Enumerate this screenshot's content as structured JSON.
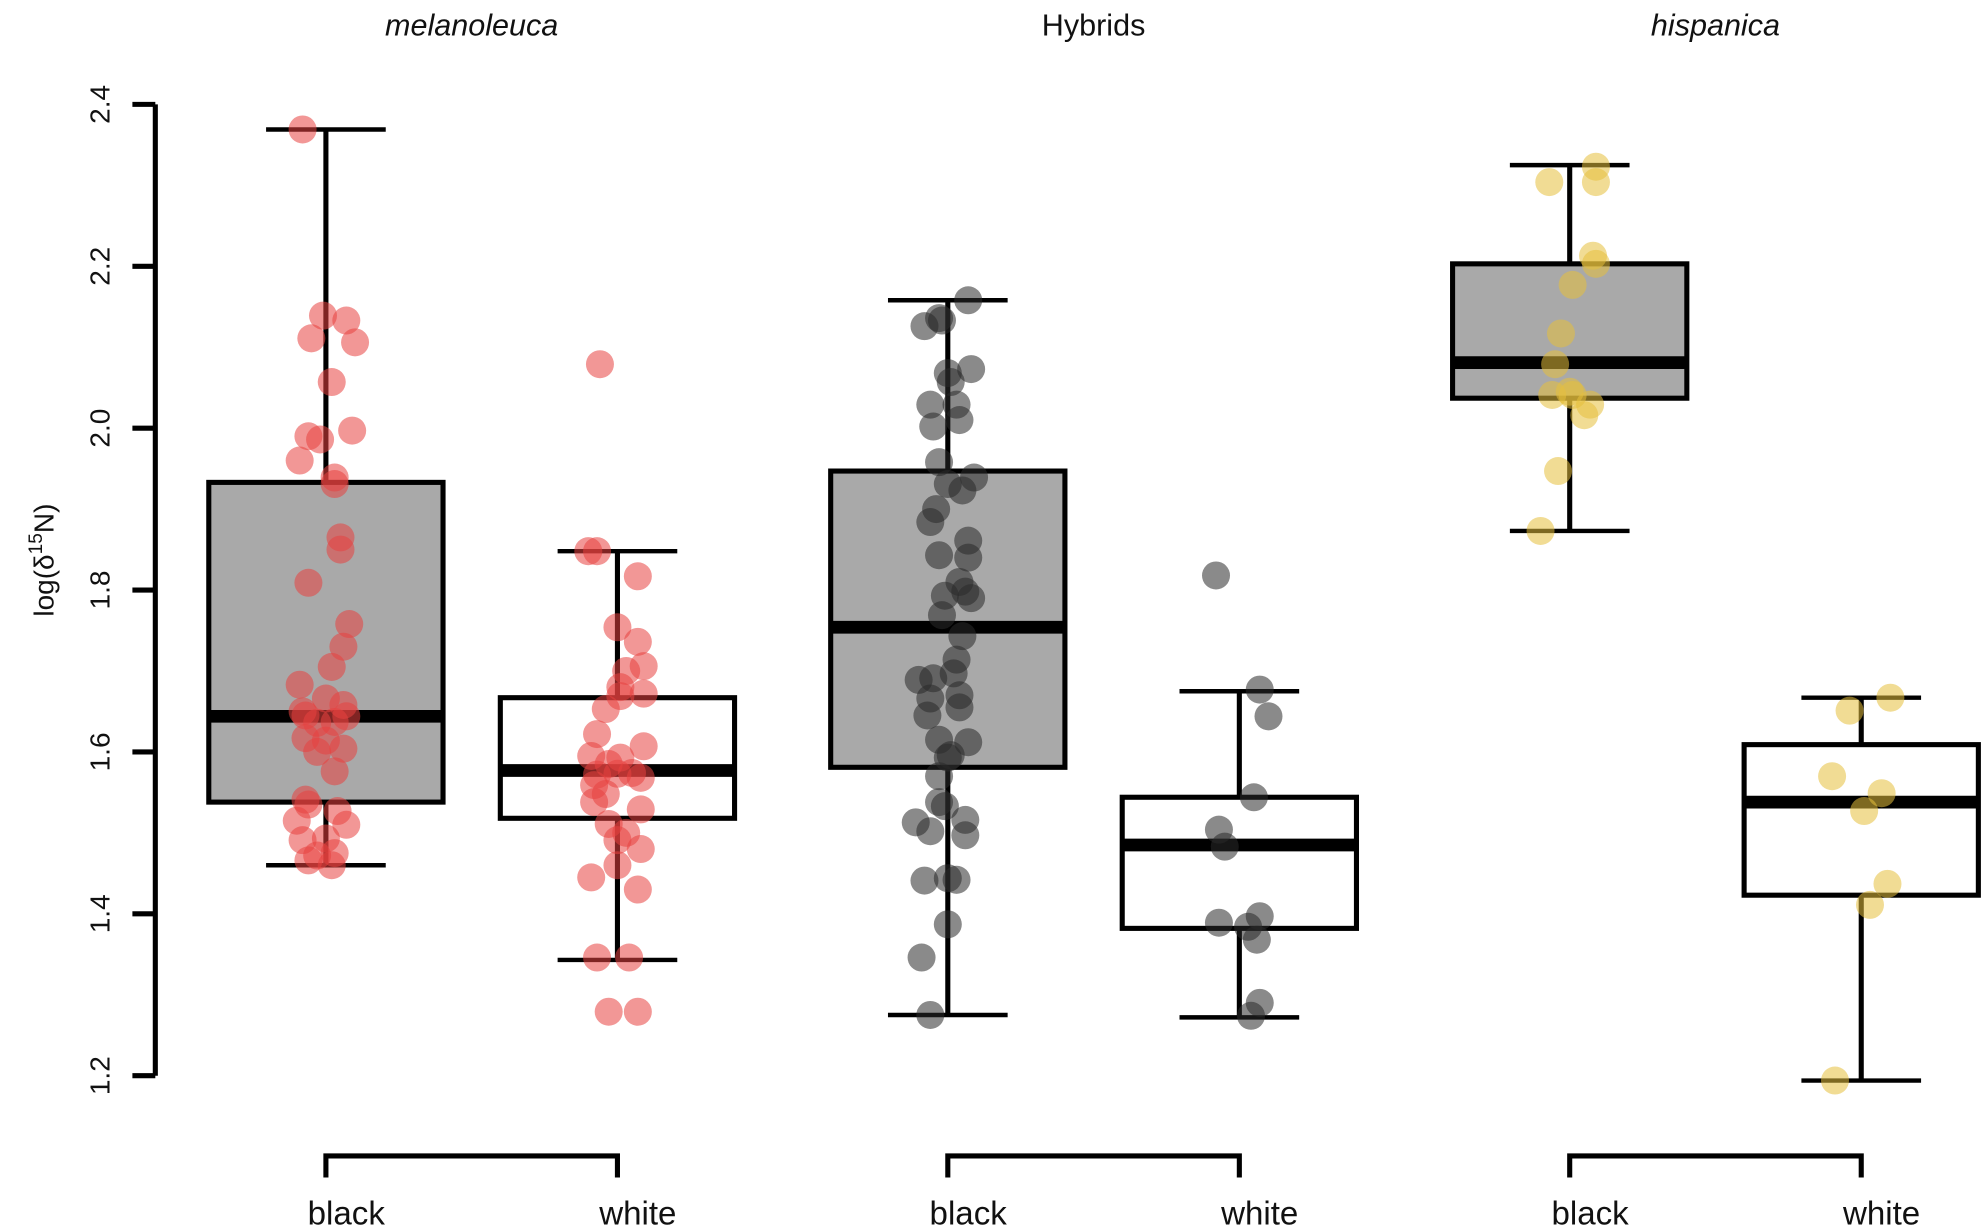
{
  "chart_data": {
    "type": "boxplot",
    "title": "",
    "ylabel": "log(δ15N)",
    "ylabel_parts": {
      "prefix": "log(δ",
      "sup": "15",
      "suffix": "N)"
    },
    "ylim": [
      1.2,
      2.4
    ],
    "yticks": [
      "1.2",
      "1.4",
      "1.6",
      "1.8",
      "2.0",
      "2.2",
      "2.4"
    ],
    "grid": false,
    "colors": {
      "melanoleuca": "#e8413f",
      "Hybrids": "#2a2a2a",
      "hispanica": "#e6bf3c",
      "box_black": "#a9a9a9",
      "box_white": "#ffffff"
    },
    "groups": [
      {
        "name": "melanoleuca",
        "italic": true,
        "color_key": "melanoleuca",
        "categories": [
          {
            "label": "black",
            "fill": "box_black",
            "stats": {
              "low": 1.46,
              "q1": 1.538,
              "median": 1.644,
              "q3": 1.933,
              "high": 2.369
            },
            "points": [
              [
                2.369,
                -0.08
              ],
              [
                2.139,
                -0.01
              ],
              [
                2.133,
                0.07
              ],
              [
                2.111,
                -0.05
              ],
              [
                2.106,
                0.1
              ],
              [
                2.057,
                0.02
              ],
              [
                1.997,
                0.09
              ],
              [
                1.99,
                -0.06
              ],
              [
                1.986,
                -0.02
              ],
              [
                1.96,
                -0.09
              ],
              [
                1.939,
                0.03
              ],
              [
                1.931,
                0.03
              ],
              [
                1.865,
                0.05
              ],
              [
                1.85,
                0.05
              ],
              [
                1.809,
                -0.06
              ],
              [
                1.758,
                0.08
              ],
              [
                1.73,
                0.06
              ],
              [
                1.705,
                0.02
              ],
              [
                1.683,
                -0.09
              ],
              [
                1.666,
                0
              ],
              [
                1.658,
                0.06
              ],
              [
                1.65,
                -0.08
              ],
              [
                1.645,
                -0.07
              ],
              [
                1.636,
                -0.03
              ],
              [
                1.637,
                0.03
              ],
              [
                1.644,
                0.07
              ],
              [
                1.617,
                -0.07
              ],
              [
                1.614,
                0
              ],
              [
                1.6,
                -0.03
              ],
              [
                1.604,
                0.06
              ],
              [
                1.576,
                0.03
              ],
              [
                1.541,
                -0.07
              ],
              [
                1.535,
                -0.06
              ],
              [
                1.527,
                0.04
              ],
              [
                1.51,
                0.07
              ],
              [
                1.515,
                -0.1
              ],
              [
                1.491,
                -0.08
              ],
              [
                1.493,
                0
              ],
              [
                1.475,
                0.03
              ],
              [
                1.472,
                -0.03
              ],
              [
                1.46,
                0.02
              ],
              [
                1.466,
                -0.06
              ]
            ]
          },
          {
            "label": "white",
            "fill": "box_white",
            "stats": {
              "low": 1.343,
              "q1": 1.518,
              "median": 1.577,
              "q3": 1.667,
              "high": 1.848
            },
            "points": [
              [
                2.079,
                -0.06
              ],
              [
                1.848,
                -0.1
              ],
              [
                1.848,
                -0.07
              ],
              [
                1.817,
                0.07
              ],
              [
                1.754,
                0
              ],
              [
                1.736,
                0.07
              ],
              [
                1.706,
                0.09
              ],
              [
                1.7,
                0.03
              ],
              [
                1.68,
                0.01
              ],
              [
                1.672,
                0.09
              ],
              [
                1.669,
                0.01
              ],
              [
                1.653,
                -0.04
              ],
              [
                1.622,
                -0.07
              ],
              [
                1.607,
                0.09
              ],
              [
                1.595,
                -0.09
              ],
              [
                1.593,
                0.01
              ],
              [
                1.585,
                -0.03
              ],
              [
                1.572,
                -0.07
              ],
              [
                1.574,
                0.05
              ],
              [
                1.573,
                0
              ],
              [
                1.568,
                0.08
              ],
              [
                1.559,
                -0.08
              ],
              [
                1.548,
                -0.04
              ],
              [
                1.538,
                -0.08
              ],
              [
                1.529,
                0.08
              ],
              [
                1.511,
                -0.03
              ],
              [
                1.5,
                0.03
              ],
              [
                1.491,
                0
              ],
              [
                1.48,
                0.08
              ],
              [
                1.46,
                0
              ],
              [
                1.445,
                -0.09
              ],
              [
                1.43,
                0.07
              ],
              [
                1.346,
                -0.07
              ],
              [
                1.346,
                0.04
              ],
              [
                1.279,
                -0.03
              ],
              [
                1.279,
                0.07
              ]
            ]
          }
        ]
      },
      {
        "name": "Hybrids",
        "italic": false,
        "color_key": "Hybrids",
        "categories": [
          {
            "label": "black",
            "fill": "box_black",
            "stats": {
              "low": 1.275,
              "q1": 1.581,
              "median": 1.754,
              "q3": 1.947,
              "high": 2.158
            },
            "points": [
              [
                2.158,
                0.07
              ],
              [
                2.136,
                -0.03
              ],
              [
                2.126,
                -0.08
              ],
              [
                2.133,
                -0.02
              ],
              [
                2.073,
                0.08
              ],
              [
                2.068,
                0
              ],
              [
                2.057,
                0.01
              ],
              [
                2.029,
                0.03
              ],
              [
                2.029,
                -0.06
              ],
              [
                2.002,
                -0.05
              ],
              [
                2.01,
                0.04
              ],
              [
                1.958,
                -0.03
              ],
              [
                1.939,
                0.09
              ],
              [
                1.931,
                0
              ],
              [
                1.923,
                0.05
              ],
              [
                1.9,
                -0.04
              ],
              [
                1.884,
                -0.06
              ],
              [
                1.861,
                0.07
              ],
              [
                1.843,
                -0.03
              ],
              [
                1.84,
                0.07
              ],
              [
                1.81,
                0.04
              ],
              [
                1.793,
                -0.01
              ],
              [
                1.79,
                0.08
              ],
              [
                1.798,
                0.06
              ],
              [
                1.769,
                -0.02
              ],
              [
                1.743,
                0.05
              ],
              [
                1.714,
                0.03
              ],
              [
                1.697,
                0.02
              ],
              [
                1.691,
                -0.05
              ],
              [
                1.689,
                -0.1
              ],
              [
                1.666,
                -0.06
              ],
              [
                1.67,
                0.04
              ],
              [
                1.645,
                -0.07
              ],
              [
                1.655,
                0.04
              ],
              [
                1.615,
                -0.03
              ],
              [
                1.612,
                0.07
              ],
              [
                1.593,
                0
              ],
              [
                1.596,
                0.01
              ],
              [
                1.57,
                -0.03
              ],
              [
                1.538,
                -0.03
              ],
              [
                1.533,
                -0.01
              ],
              [
                1.516,
                0.06
              ],
              [
                1.513,
                -0.11
              ],
              [
                1.502,
                -0.06
              ],
              [
                1.497,
                0.06
              ],
              [
                1.441,
                -0.08
              ],
              [
                1.444,
                0
              ],
              [
                1.442,
                0.03
              ],
              [
                1.387,
                0
              ],
              [
                1.346,
                -0.09
              ],
              [
                1.275,
                -0.06
              ]
            ]
          },
          {
            "label": "white",
            "fill": "box_white",
            "stats": {
              "low": 1.272,
              "q1": 1.382,
              "median": 1.485,
              "q3": 1.544,
              "high": 1.675
            },
            "points": [
              [
                1.818,
                -0.08
              ],
              [
                1.677,
                0.07
              ],
              [
                1.644,
                0.1
              ],
              [
                1.544,
                0.05
              ],
              [
                1.504,
                -0.07
              ],
              [
                1.483,
                -0.05
              ],
              [
                1.389,
                -0.07
              ],
              [
                1.397,
                0.07
              ],
              [
                1.384,
                0.03
              ],
              [
                1.368,
                0.06
              ],
              [
                1.29,
                0.07
              ],
              [
                1.274,
                0.04
              ]
            ]
          }
        ]
      },
      {
        "name": "hispanica",
        "italic": true,
        "color_key": "hispanica",
        "categories": [
          {
            "label": "black",
            "fill": "box_black",
            "stats": {
              "low": 1.873,
              "q1": 2.037,
              "median": 2.081,
              "q3": 2.203,
              "high": 2.325
            },
            "points": [
              [
                2.304,
                -0.07
              ],
              [
                2.323,
                0.09
              ],
              [
                2.304,
                0.09
              ],
              [
                2.213,
                0.08
              ],
              [
                2.203,
                0.09
              ],
              [
                2.177,
                0.01
              ],
              [
                2.117,
                -0.03
              ],
              [
                2.079,
                -0.05
              ],
              [
                2.041,
                -0.06
              ],
              [
                2.045,
                0
              ],
              [
                2.041,
                0.01
              ],
              [
                2.029,
                0.07
              ],
              [
                2.016,
                0.05
              ],
              [
                1.947,
                -0.04
              ],
              [
                1.873,
                -0.1
              ]
            ]
          },
          {
            "label": "white",
            "fill": "box_white",
            "stats": {
              "low": 1.194,
              "q1": 1.423,
              "median": 1.538,
              "q3": 1.609,
              "high": 1.667
            },
            "points": [
              [
                1.651,
                -0.04
              ],
              [
                1.667,
                0.1
              ],
              [
                1.57,
                -0.1
              ],
              [
                1.549,
                0.07
              ],
              [
                1.527,
                0.01
              ],
              [
                1.437,
                0.09
              ],
              [
                1.411,
                0.03
              ],
              [
                1.194,
                -0.09
              ]
            ]
          }
        ]
      }
    ]
  }
}
